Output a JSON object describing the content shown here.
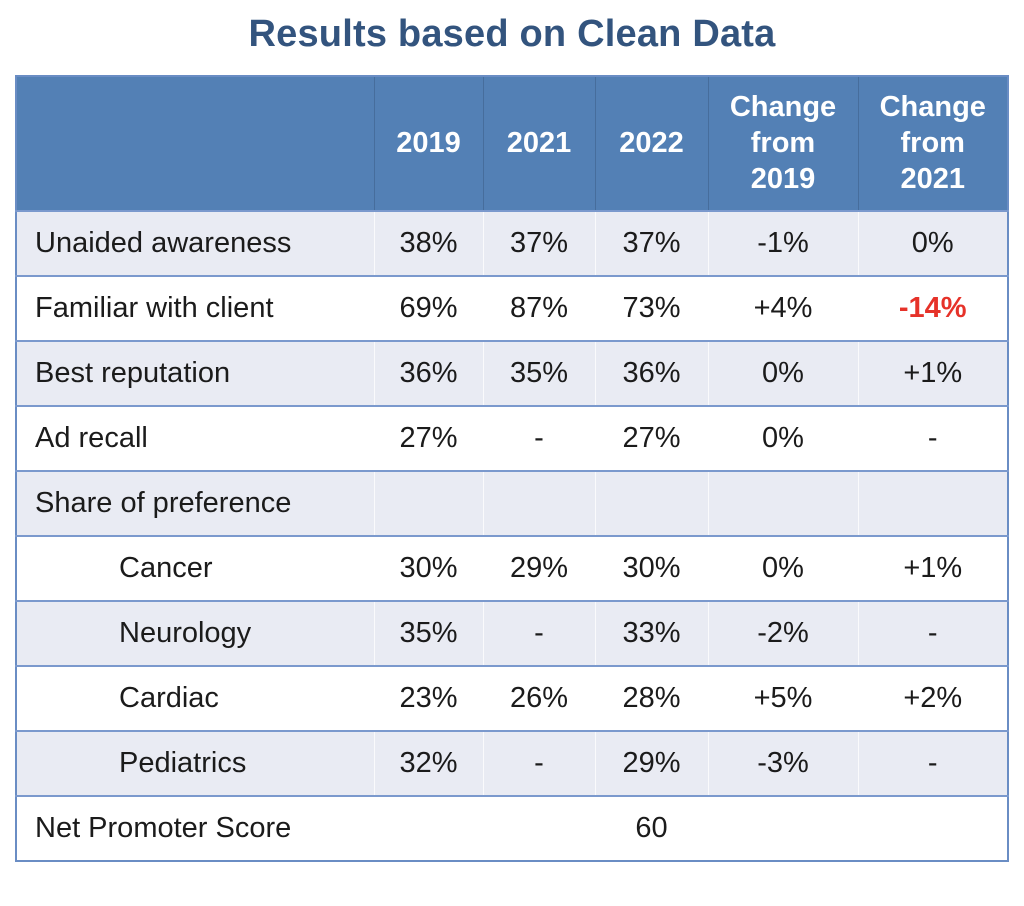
{
  "page": {
    "title": "Results based on Clean Data"
  },
  "colors": {
    "title_color": "#33547e",
    "header_bg": "#5380b5",
    "header_text": "#ffffff",
    "shaded_row_bg": "#e9ebf3",
    "white_row_bg": "#ffffff",
    "table_border": "#6a8dc4",
    "row_divider": "#7b99cd",
    "body_text": "#1b1b1b",
    "negative_highlight": "#e63229"
  },
  "chart_data": {
    "type": "table",
    "title": "Results based on Clean Data",
    "columns": [
      "",
      "2019",
      "2021",
      "2022",
      "Change from 2019",
      "Change from 2021"
    ],
    "rows": [
      {
        "label": "Unaided awareness",
        "indent": false,
        "values": [
          "38%",
          "37%",
          "37%",
          "-1%",
          "0%"
        ]
      },
      {
        "label": "Familiar with client",
        "indent": false,
        "values": [
          "69%",
          "87%",
          "73%",
          "+4%",
          "-14%"
        ],
        "highlight_value_index": 4
      },
      {
        "label": "Best reputation",
        "indent": false,
        "values": [
          "36%",
          "35%",
          "36%",
          "0%",
          "+1%"
        ]
      },
      {
        "label": "Ad recall",
        "indent": false,
        "values": [
          "27%",
          "-",
          "27%",
          "0%",
          "-"
        ]
      },
      {
        "label": "Share of preference",
        "indent": false,
        "values": [
          "",
          "",
          "",
          "",
          ""
        ]
      },
      {
        "label": "Cancer",
        "indent": true,
        "values": [
          "30%",
          "29%",
          "30%",
          "0%",
          "+1%"
        ]
      },
      {
        "label": "Neurology",
        "indent": true,
        "values": [
          "35%",
          "-",
          "33%",
          "-2%",
          "-"
        ]
      },
      {
        "label": "Cardiac",
        "indent": true,
        "values": [
          "23%",
          "26%",
          "28%",
          "+5%",
          "+2%"
        ]
      },
      {
        "label": "Pediatrics",
        "indent": true,
        "values": [
          "32%",
          "-",
          "29%",
          "-3%",
          "-"
        ]
      },
      {
        "label": "Net Promoter Score",
        "indent": false,
        "values": [
          "",
          "",
          "60",
          "",
          ""
        ]
      }
    ]
  }
}
